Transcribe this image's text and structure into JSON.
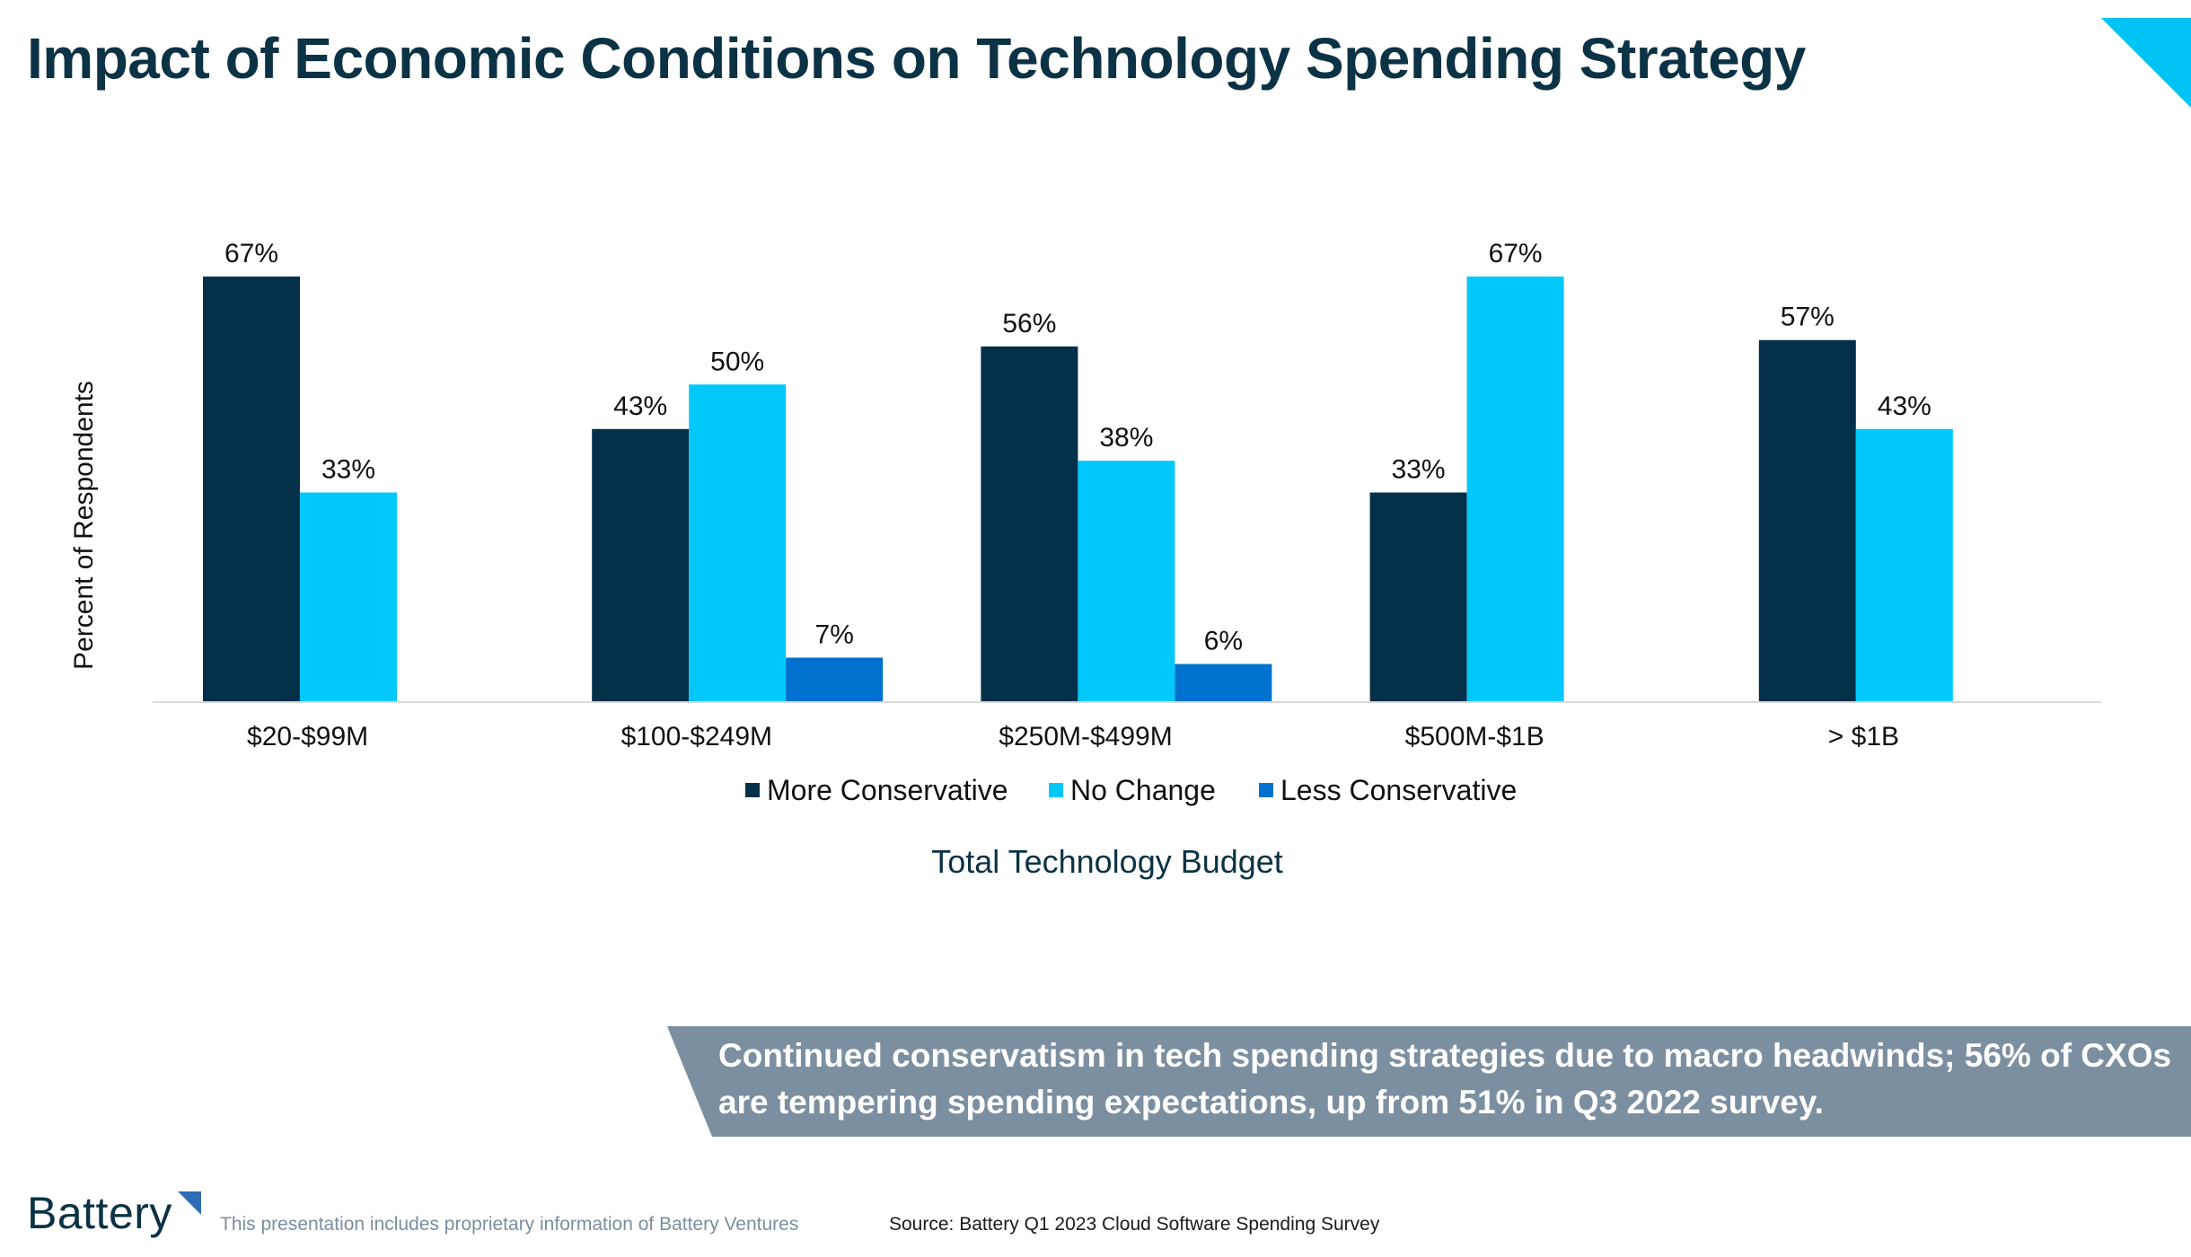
{
  "slide": {
    "title": "Impact of Economic Conditions on Technology Spending Strategy",
    "callout": "Continued conservatism in tech spending strategies due to macro headwinds; 56% of CXOs are tempering spending expectations, up from 51% in Q3 2022 survey.",
    "footer_logo": "Battery",
    "footer_disclaimer": "This presentation includes proprietary information of Battery Ventures",
    "footer_source": "Source: Battery Q1 2023 Cloud Software Spending Survey",
    "colors": {
      "title": "#0b3245",
      "corner_accent": "#00c3f5",
      "callout_bg": "#7b8fa1",
      "logo_mark": "#2f6db5"
    }
  },
  "chart_data": {
    "type": "bar",
    "title": "",
    "xlabel": "Total Technology Budget",
    "ylabel": "Percent of Respondents",
    "categories": [
      "$20-$99M",
      "$100-$249M",
      "$250M-$499M",
      "$500M-$1B",
      "> $1B"
    ],
    "series": [
      {
        "name": "More Conservative",
        "color": "#05304a",
        "values": [
          67,
          43,
          56,
          33,
          57
        ],
        "labels": [
          "67%",
          "43%",
          "56%",
          "33%",
          "57%"
        ]
      },
      {
        "name": "No Change",
        "color": "#00c8fb",
        "values": [
          33,
          50,
          38,
          67,
          43
        ],
        "labels": [
          "33%",
          "50%",
          "38%",
          "67%",
          "43%"
        ]
      },
      {
        "name": "Less Conservative",
        "color": "#0071ce",
        "values": [
          null,
          7,
          6,
          null,
          null
        ],
        "labels": [
          "",
          "7%",
          "6%",
          "",
          ""
        ]
      }
    ],
    "ylim": [
      0,
      67
    ],
    "grid": false,
    "legend": "bottom"
  }
}
